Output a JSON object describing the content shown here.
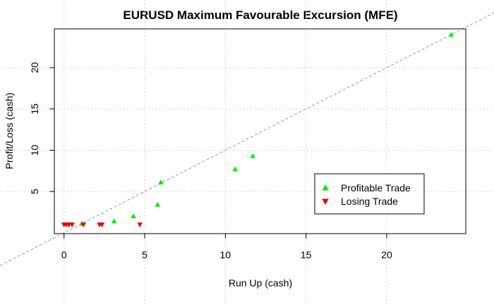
{
  "chart_data": {
    "type": "scatter",
    "title": "EURUSD Maximum Favourable Excursion (MFE)",
    "xlabel": "Run Up (cash)",
    "ylabel": "Profit/Loss (cash)",
    "xlim": [
      -0.6,
      24.9
    ],
    "ylim": [
      -0.1,
      24.7
    ],
    "x_ticks": [
      0,
      5,
      10,
      15,
      20
    ],
    "y_ticks": [
      5,
      10,
      15,
      20
    ],
    "grid": true,
    "reference_line": {
      "slope": 1,
      "intercept": 0,
      "style": "dashed",
      "color": "#999999"
    },
    "legend_position": "right",
    "series": [
      {
        "name": "Profitable Trade",
        "marker": "triangle-up",
        "color": "#00ee00",
        "points": [
          {
            "x": 1.1,
            "y": 1.1
          },
          {
            "x": 3.1,
            "y": 1.4
          },
          {
            "x": 4.3,
            "y": 2.0
          },
          {
            "x": 5.8,
            "y": 3.4
          },
          {
            "x": 6.0,
            "y": 6.1
          },
          {
            "x": 10.6,
            "y": 7.7
          },
          {
            "x": 11.7,
            "y": 9.3
          },
          {
            "x": 24.0,
            "y": 24.0
          }
        ]
      },
      {
        "name": "Losing Trade",
        "marker": "triangle-down",
        "color": "#ee0000",
        "points": [
          {
            "x": 0.0,
            "y": 1.0
          },
          {
            "x": 0.15,
            "y": 1.0
          },
          {
            "x": 0.3,
            "y": 1.0
          },
          {
            "x": 0.5,
            "y": 1.0
          },
          {
            "x": 1.2,
            "y": 1.0
          },
          {
            "x": 2.2,
            "y": 1.0
          },
          {
            "x": 2.35,
            "y": 1.0
          },
          {
            "x": 4.7,
            "y": 1.0
          }
        ]
      }
    ]
  }
}
